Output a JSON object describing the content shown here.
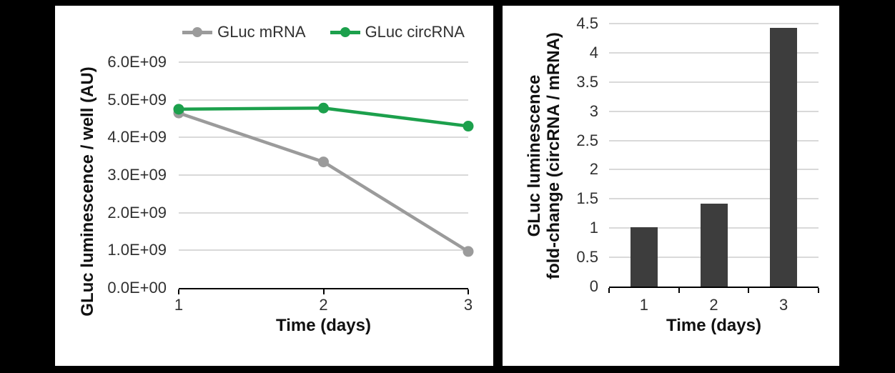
{
  "figure": {
    "background": "#000000",
    "panel_background": "#ffffff"
  },
  "colors": {
    "grid": "#d9d9d9",
    "axis": "#000000",
    "tick_text": "#303030",
    "title_text": "#111111"
  },
  "chart_data": [
    {
      "type": "line",
      "title": "",
      "xlabel": "Time (days)",
      "ylabel": "GLuc luminescence / well (AU)",
      "x": [
        1,
        2,
        3
      ],
      "xlim": [
        1,
        3
      ],
      "ylim": [
        0,
        6000000000
      ],
      "ytick_step": 1000000000,
      "ytick_labels": [
        "0.0E+00",
        "1.0E+09",
        "2.0E+09",
        "3.0E+09",
        "4.0E+09",
        "5.0E+09",
        "6.0E+09"
      ],
      "xtick_labels": [
        "1",
        "2",
        "3"
      ],
      "grid": true,
      "legend_position": "top",
      "series": [
        {
          "name": "GLuc mRNA",
          "color": "#9b9b9b",
          "values": [
            4650000000,
            3350000000,
            970000000
          ]
        },
        {
          "name": "GLuc circRNA",
          "color": "#1ca04c",
          "values": [
            4750000000,
            4780000000,
            4300000000
          ]
        }
      ]
    },
    {
      "type": "bar",
      "title": "",
      "xlabel": "Time (days)",
      "ylabel_lines": [
        "GLuc luminescence",
        "fold-change (circRNA / mRNA)"
      ],
      "categories": [
        "1",
        "2",
        "3"
      ],
      "values": [
        1.02,
        1.42,
        4.43
      ],
      "bar_color": "#3d3d3d",
      "ylim": [
        0,
        4.5
      ],
      "ytick_step": 0.5,
      "ytick_labels": [
        "0",
        "0.5",
        "1",
        "1.5",
        "2",
        "2.5",
        "3",
        "3.5",
        "4",
        "4.5"
      ],
      "grid": true,
      "legend_position": "none"
    }
  ]
}
